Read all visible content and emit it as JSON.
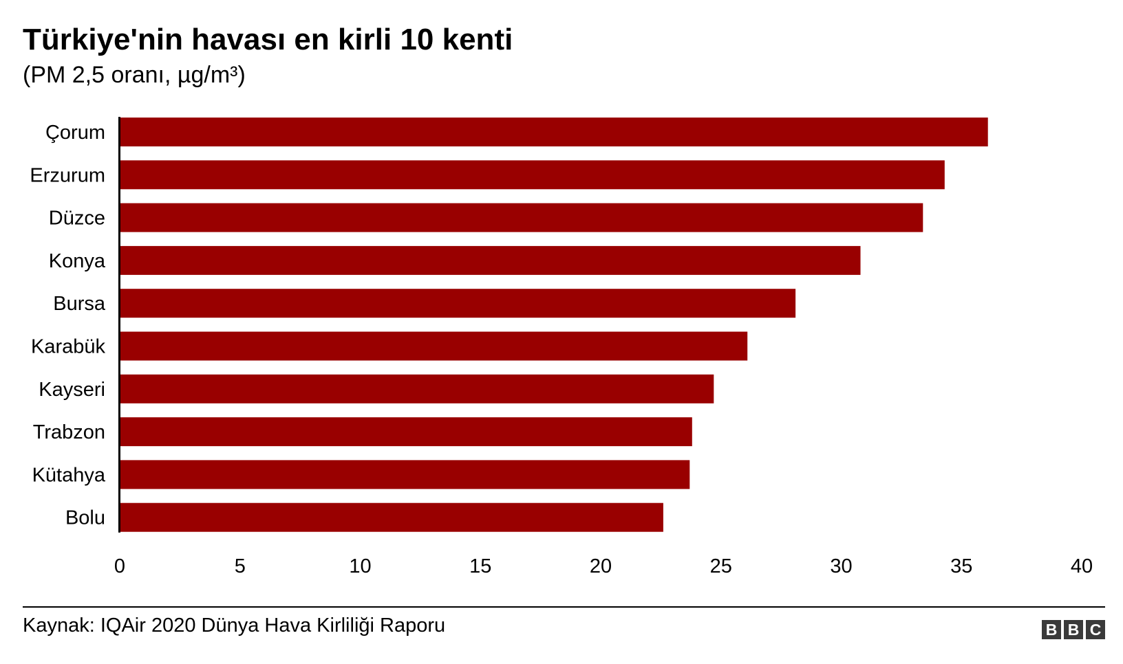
{
  "chart_data": {
    "type": "bar",
    "orientation": "horizontal",
    "title": "Türkiye'nin havası en kirli 10 kenti",
    "subtitle": "(PM 2,5 oranı, µg/m³)",
    "categories": [
      "Çorum",
      "Erzurum",
      "Düzce",
      "Konya",
      "Bursa",
      "Karabük",
      "Kayseri",
      "Trabzon",
      "Kütahya",
      "Bolu"
    ],
    "values": [
      36.1,
      34.3,
      33.4,
      30.8,
      28.1,
      26.1,
      24.7,
      23.8,
      23.7,
      22.6
    ],
    "xlim": [
      0,
      40
    ],
    "xticks": [
      "0",
      "5",
      "10",
      "15",
      "20",
      "25",
      "30",
      "35",
      "40"
    ],
    "xlabel": "",
    "ylabel": "",
    "grid": false,
    "bar_color": "#990000"
  },
  "footer": {
    "source": "Kaynak: IQAir 2020 Dünya Hava Kirliliği Raporu",
    "logo_letters": [
      "B",
      "B",
      "C"
    ]
  }
}
